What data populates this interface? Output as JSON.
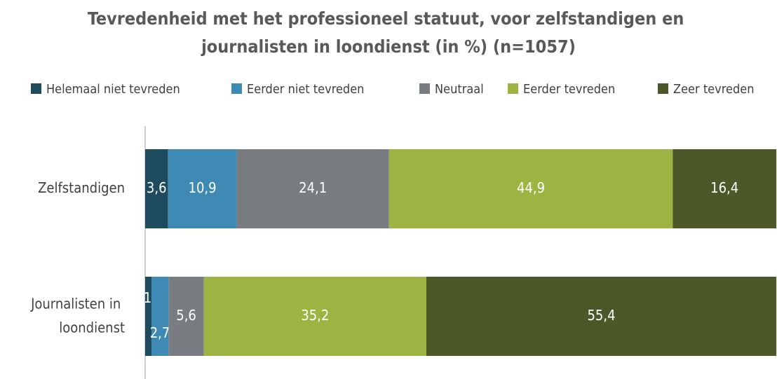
{
  "chart_data": {
    "type": "stacked-bar-horizontal",
    "title": "Tevredenheid met het professioneel statuut, voor zelfstandigen en journalisten in loondienst (in %) (n=1057)",
    "categories": [
      "Zelfstandigen",
      "Journalisten in loondienst"
    ],
    "series": [
      {
        "name": "Helemaal niet tevreden",
        "color": "#1d4a5c",
        "values": [
          3.6,
          1.0
        ],
        "value_labels": [
          "3,6",
          "1,0"
        ]
      },
      {
        "name": "Eerder niet tevreden",
        "color": "#3f8ab4",
        "values": [
          10.9,
          2.7
        ],
        "value_labels": [
          "10,9",
          "2,7"
        ]
      },
      {
        "name": "Neutraal",
        "color": "#797c80",
        "values": [
          24.1,
          5.6
        ],
        "value_labels": [
          "24,1",
          "5,6"
        ]
      },
      {
        "name": "Eerder tevreden",
        "color": "#9cb542",
        "values": [
          44.9,
          35.2
        ],
        "value_labels": [
          "44,9",
          "35,2"
        ]
      },
      {
        "name": "Zeer tevreden",
        "color": "#4a5927",
        "values": [
          16.4,
          55.4
        ],
        "value_labels": [
          "16,4",
          "55,4"
        ]
      }
    ],
    "xlim": [
      0,
      100
    ],
    "legend": "top"
  }
}
